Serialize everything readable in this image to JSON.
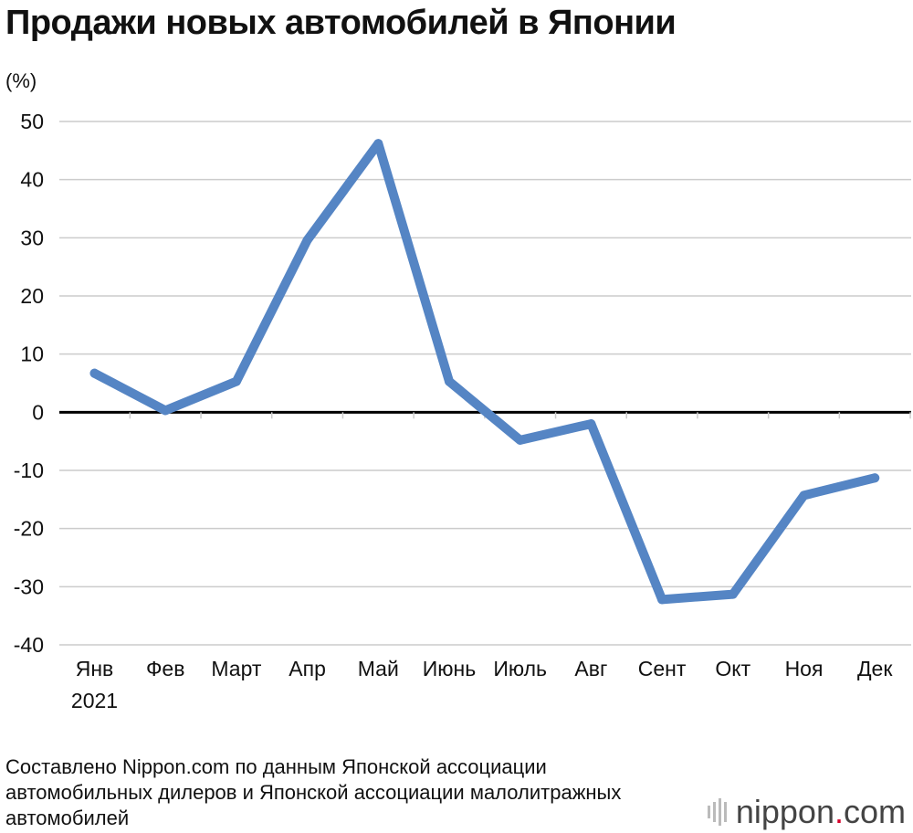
{
  "header": {
    "title": "Продажи новых автомобилей в Японии",
    "unit": "(%)"
  },
  "footer": {
    "source": "Составлено Nippon.com по данным Японской ассоциации автомобильных дилеров и Японской ассоциации малолитражных автомобилей",
    "logo_name": "nippon",
    "logo_dot": ".",
    "logo_tld": "com"
  },
  "colors": {
    "line": "#5585c4",
    "grid": "#cccccc",
    "zero": "#000000",
    "logo_dot": "#d6002a"
  },
  "chart_data": {
    "type": "line",
    "title": "Продажи новых автомобилей в Японии",
    "ylabel": "(%)",
    "categories": [
      "Янв",
      "Фев",
      "Март",
      "Апр",
      "Май",
      "Июнь",
      "Июль",
      "Авг",
      "Сент",
      "Окт",
      "Ноя",
      "Дек"
    ],
    "year_label": "2021",
    "series": [
      {
        "values": [
          6.7,
          0.3,
          5.3,
          29.6,
          46.2,
          5.3,
          -4.8,
          -2.0,
          -32.2,
          -31.3,
          -14.3,
          -11.3
        ]
      }
    ],
    "ylim": [
      -40,
      50
    ],
    "yticks": [
      50,
      40,
      30,
      20,
      10,
      0,
      -10,
      -20,
      -30,
      -40
    ],
    "grid": true,
    "legend": "none"
  }
}
